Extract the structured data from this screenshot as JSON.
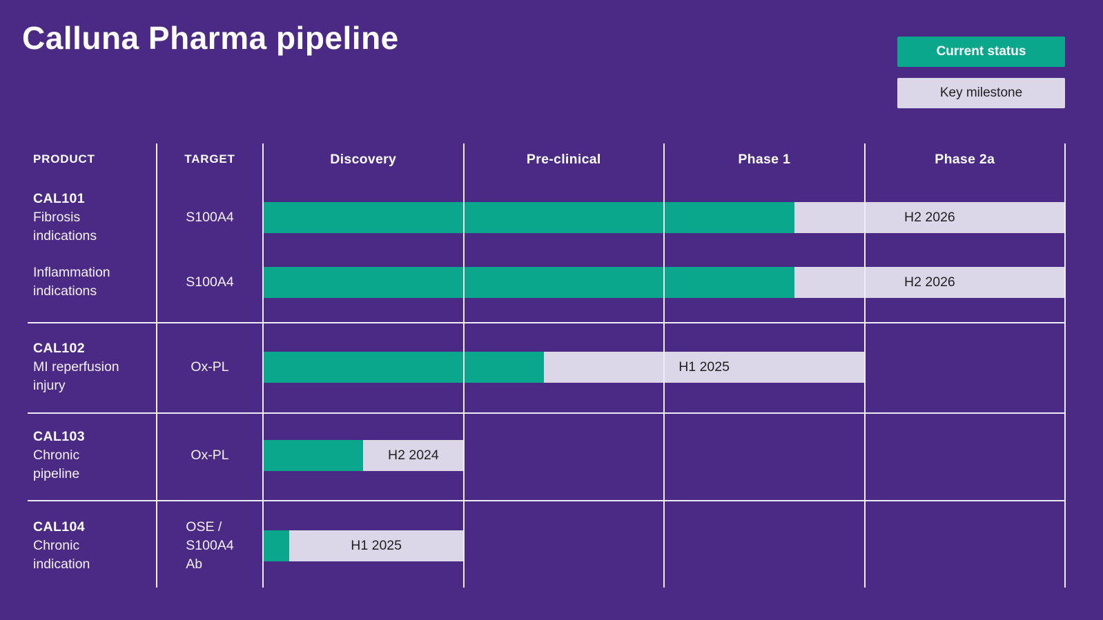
{
  "title": "Calluna Pharma pipeline",
  "legend": {
    "current": "Current status",
    "milestone": "Key milestone"
  },
  "table": {
    "col_product": "PRODUCT",
    "col_target": "TARGET"
  },
  "colors": {
    "background": "#4A2A84",
    "current_status": "#0AA78C",
    "key_milestone": "#DCD7E8",
    "grid_line": "#EFECF6",
    "text_light": "#FFFFFF",
    "text_dark": "#1F1F1F"
  },
  "chart_data": {
    "type": "gantt",
    "title": "Calluna Pharma pipeline",
    "phases": [
      "Discovery",
      "Pre-clinical",
      "Phase 1",
      "Phase 2a"
    ],
    "axis_units": "clinical development phases (0 = start of Discovery, 4 = end of Phase 2a)",
    "legend_position": "top-right",
    "groups": [
      {
        "rows": [
          {
            "product": [
              "CAL101",
              "Fibrosis",
              "indications"
            ],
            "product_bold_first": true,
            "target": [
              "S100A4"
            ],
            "current_end": 2.65,
            "milestone_end": 4,
            "milestone_label": "H2 2026"
          },
          {
            "product": [
              "Inflammation",
              "indications"
            ],
            "product_bold_first": false,
            "target": [
              "S100A4"
            ],
            "current_end": 2.65,
            "milestone_end": 4,
            "milestone_label": "H2 2026"
          }
        ]
      },
      {
        "rows": [
          {
            "product": [
              "CAL102",
              "MI reperfusion",
              "injury"
            ],
            "product_bold_first": true,
            "target": [
              "Ox-PL"
            ],
            "current_end": 1.4,
            "milestone_end": 3,
            "milestone_label": "H1 2025"
          }
        ]
      },
      {
        "rows": [
          {
            "product": [
              "CAL103",
              "Chronic",
              "pipeline"
            ],
            "product_bold_first": true,
            "target": [
              "Ox-PL"
            ],
            "current_end": 0.5,
            "milestone_end": 1,
            "milestone_label": "H2 2024"
          }
        ]
      },
      {
        "rows": [
          {
            "product": [
              "CAL104",
              "Chronic",
              "indication"
            ],
            "product_bold_first": true,
            "target": [
              "OSE /",
              "S100A4",
              "Ab"
            ],
            "current_end": 0.13,
            "milestone_end": 1,
            "milestone_label": "H1 2025"
          }
        ]
      }
    ]
  }
}
